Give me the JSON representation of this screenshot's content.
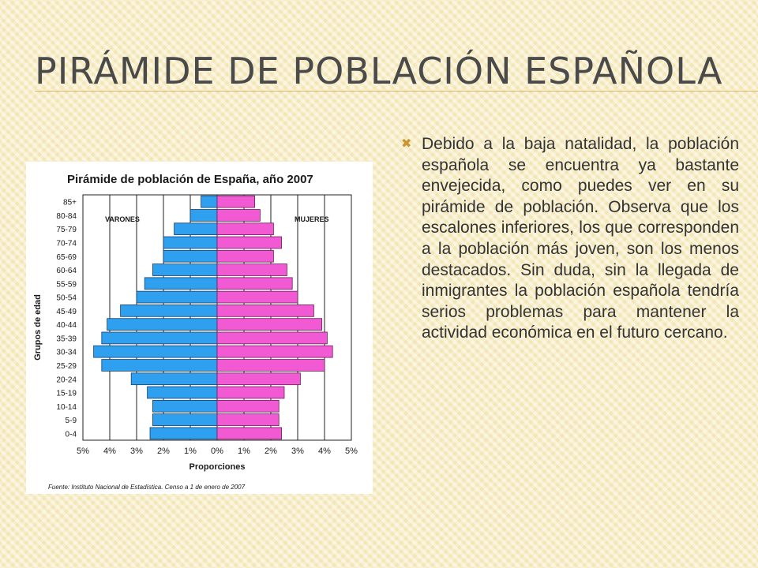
{
  "slide": {
    "title": "PIRÁMIDE DE POBLACIÓN ESPAÑOLA",
    "bullet_icon": "x-mark-bullet-icon",
    "body_text": "Debido a la baja natalidad, la población española se encuentra ya bastante envejecida, como puedes ver en su pirámide de población. Observa que los escalones inferiores, los que corresponden a la población más joven, son los menos destacados. Sin duda, sin la llegada de inmigrantes la población española tendría serios problemas para mantener la actividad económica en el futuro cercano."
  },
  "chart_data": {
    "type": "bar",
    "orientation": "horizontal-pyramid",
    "title": "Pirámide de población de España, año 2007",
    "xlabel": "Proporciones",
    "ylabel": "Grupos de edad",
    "source": "Fuente: Instituto Nacional de Estadística. Censo a 1 de enero de 2007",
    "categories": [
      "0-4",
      "5-9",
      "10-14",
      "15-19",
      "20-24",
      "25-29",
      "30-34",
      "35-39",
      "40-44",
      "45-49",
      "50-54",
      "55-59",
      "60-64",
      "65-69",
      "70-74",
      "75-79",
      "80-84",
      "85+"
    ],
    "series": [
      {
        "name": "VARONES",
        "color": "#2f9ff0",
        "values": [
          2.5,
          2.4,
          2.4,
          2.6,
          3.2,
          4.3,
          4.6,
          4.3,
          4.1,
          3.6,
          3.0,
          2.7,
          2.4,
          2.0,
          2.0,
          1.6,
          1.0,
          0.6
        ]
      },
      {
        "name": "MUJERES",
        "color": "#f25ad4",
        "values": [
          2.4,
          2.3,
          2.3,
          2.5,
          3.1,
          4.0,
          4.3,
          4.1,
          3.9,
          3.6,
          3.0,
          2.8,
          2.6,
          2.1,
          2.4,
          2.1,
          1.6,
          1.4
        ]
      }
    ],
    "xlim": [
      -5,
      5
    ],
    "xticks": [
      "5%",
      "4%",
      "3%",
      "2%",
      "1%",
      "0%",
      "1%",
      "2%",
      "3%",
      "4%",
      "5%"
    ],
    "grid": true
  }
}
